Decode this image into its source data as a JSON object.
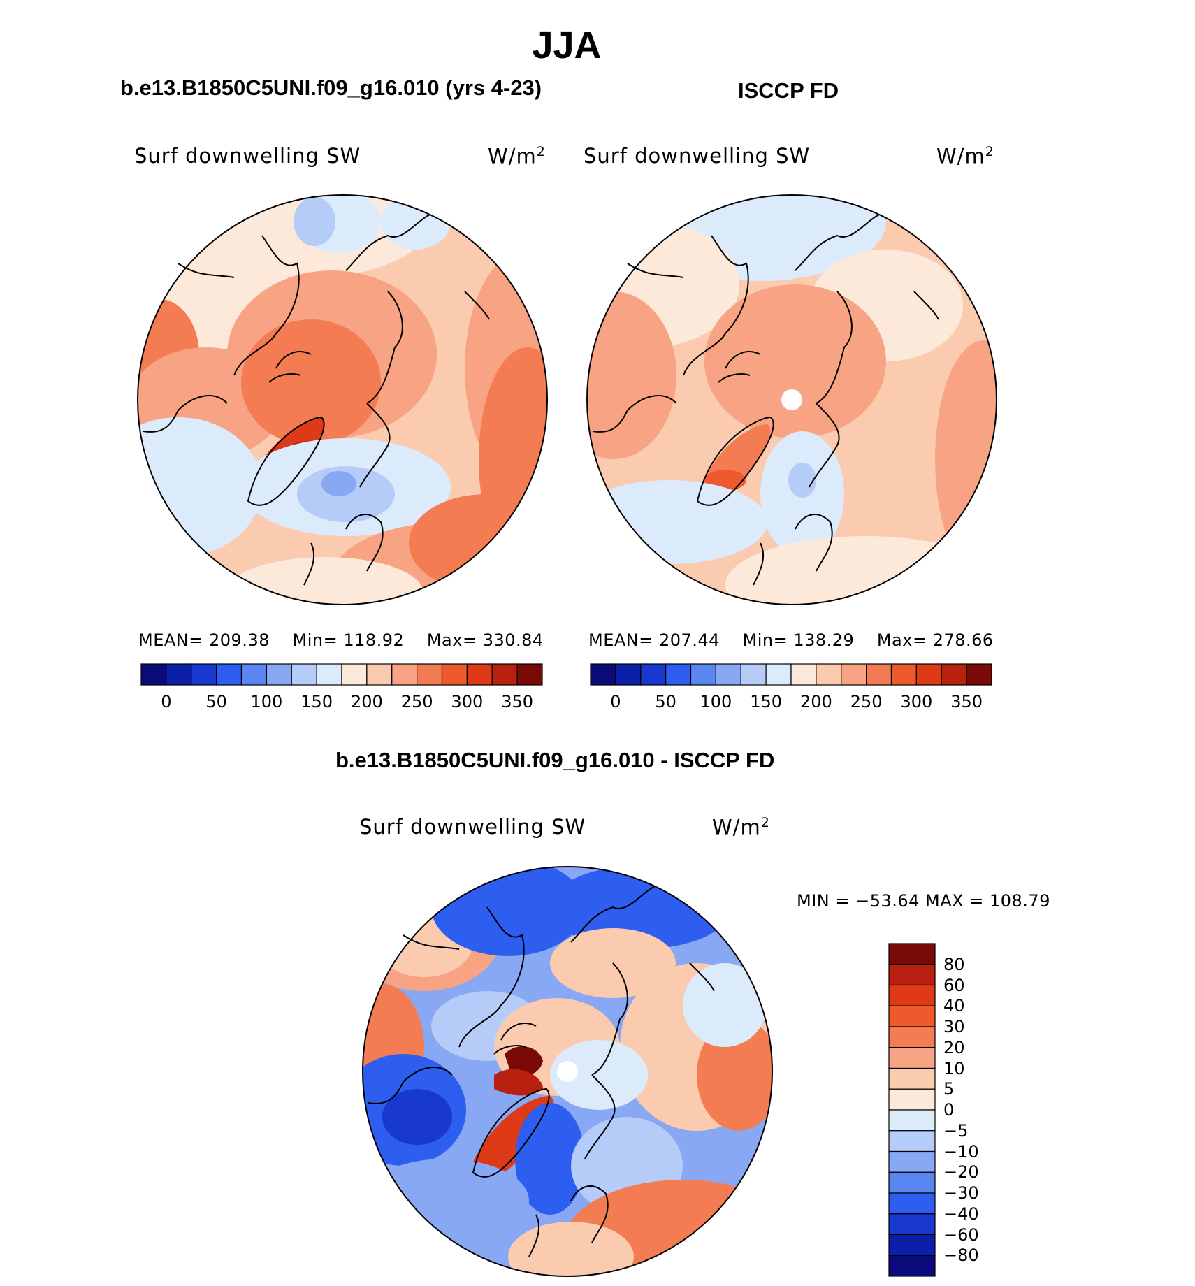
{
  "figure": {
    "title": "JJA",
    "panel_left": {
      "title": "b.e13.B1850C5UNI.f09_g16.010 (yrs 4-23)",
      "variable": "Surf downwelling SW",
      "units": "W/m",
      "units_sup": "2",
      "stats": {
        "mean_label": "MEAN=",
        "mean": "209.38",
        "min_label": "Min=",
        "min": "118.92",
        "max_label": "Max=",
        "max": "330.84"
      }
    },
    "panel_right": {
      "title": "ISCCP FD",
      "variable": "Surf downwelling SW",
      "units": "W/m",
      "units_sup": "2",
      "stats": {
        "mean_label": "MEAN=",
        "mean": "207.44",
        "min_label": "Min=",
        "min": "138.29",
        "max_label": "Max=",
        "max": "278.66"
      }
    },
    "panel_diff": {
      "title": "b.e13.B1850C5UNI.f09_g16.010 - ISCCP FD",
      "variable": "Surf downwelling SW",
      "units": "W/m",
      "units_sup": "2",
      "minmax": "MIN = −53.64  MAX = 108.79"
    }
  },
  "colorbar_field": {
    "colors": [
      "#0a0a78",
      "#0b1fa8",
      "#1838d0",
      "#2d5ef0",
      "#5a86f2",
      "#88a8f4",
      "#b5cbf8",
      "#dcebfc",
      "#fde9da",
      "#fbcbb0",
      "#f8a383",
      "#f47c53",
      "#ee5a2e",
      "#df3a17",
      "#b82010",
      "#7a0a06"
    ],
    "labels": [
      "0",
      "50",
      "100",
      "150",
      "200",
      "250",
      "300",
      "350"
    ]
  },
  "colorbar_diff": {
    "colors": [
      "#7a0a06",
      "#b82010",
      "#df3a17",
      "#ee5a2e",
      "#f47c53",
      "#f8a383",
      "#fbcbb0",
      "#fde9da",
      "#dcebfc",
      "#b5cbf8",
      "#88a8f4",
      "#5a86f2",
      "#2d5ef0",
      "#1838d0",
      "#0b1fa8",
      "#0a0a78"
    ],
    "labels": [
      "80",
      "60",
      "40",
      "30",
      "20",
      "10",
      "5",
      "0",
      "−5",
      "−10",
      "−20",
      "−30",
      "−40",
      "−60",
      "−80"
    ]
  }
}
